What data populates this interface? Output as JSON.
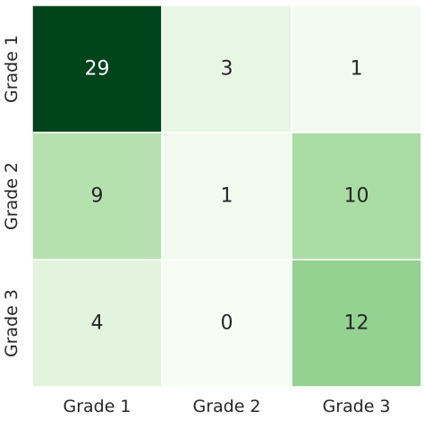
{
  "chart_data": {
    "type": "heatmap",
    "title": "",
    "xlabel": "",
    "ylabel": "",
    "x_categories": [
      "Grade 1",
      "Grade 2",
      "Grade 3"
    ],
    "y_categories": [
      "Grade 1",
      "Grade 2",
      "Grade 3"
    ],
    "values": [
      [
        29,
        3,
        1
      ],
      [
        9,
        1,
        10
      ],
      [
        4,
        0,
        12
      ]
    ],
    "colormap": "Greens",
    "value_range": [
      0,
      29
    ],
    "colorbar": false,
    "grid": false,
    "cell_border_color": "#ffffff",
    "annotation_colors": {
      "light": "#ffffff",
      "dark": "#262626"
    }
  }
}
